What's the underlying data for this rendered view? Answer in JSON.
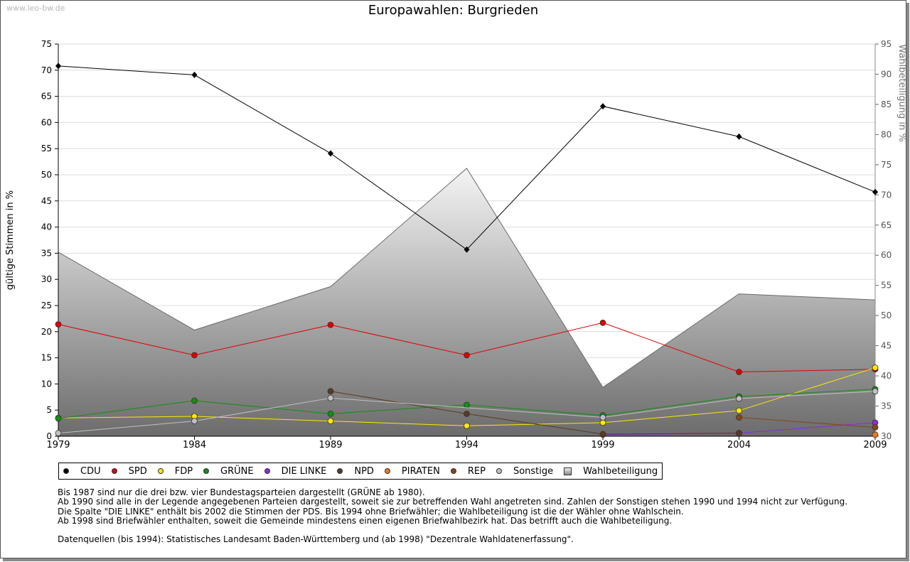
{
  "watermark": "www.leo-bw.de",
  "chart_data": {
    "type": "line",
    "title": "Europawahlen: Burgrieden",
    "ylabel": "gültige Stimmen in %",
    "y2label": "Wahlbeteiligung in %",
    "x": [
      1979,
      1984,
      1989,
      1994,
      1999,
      2004,
      2009
    ],
    "ylim": [
      0,
      75
    ],
    "y_ticks": [
      0,
      5,
      10,
      15,
      20,
      25,
      30,
      35,
      40,
      45,
      50,
      55,
      60,
      65,
      70,
      75
    ],
    "y2lim": [
      30,
      95
    ],
    "y2_ticks": [
      30,
      35,
      40,
      45,
      50,
      55,
      60,
      65,
      70,
      75,
      80,
      85,
      90,
      95
    ],
    "grid": true,
    "legend_position": "bottom",
    "series": [
      {
        "name": "CDU",
        "color": "#000000",
        "x": [
          1979,
          1984,
          1989,
          1994,
          1999,
          2004,
          2009
        ],
        "values": [
          70.8,
          69.1,
          54.1,
          35.7,
          63.1,
          57.3,
          46.7
        ]
      },
      {
        "name": "SPD",
        "color": "#e00000",
        "x": [
          1979,
          1984,
          1989,
          1994,
          1999,
          2004,
          2009
        ],
        "values": [
          21.4,
          15.5,
          21.3,
          15.5,
          21.7,
          12.3,
          12.8
        ]
      },
      {
        "name": "FDP",
        "color": "#ffe800",
        "x": [
          1979,
          1984,
          1989,
          1994,
          1999,
          2004,
          2009
        ],
        "values": [
          3.5,
          3.8,
          2.9,
          2.0,
          2.6,
          4.9,
          13.1
        ]
      },
      {
        "name": "GRÜNE",
        "color": "#109010",
        "x": [
          1979,
          1984,
          1989,
          1994,
          1999,
          2004,
          2009
        ],
        "values": [
          3.4,
          6.8,
          4.3,
          6.0,
          4.0,
          7.6,
          9.0
        ]
      },
      {
        "name": "DIE LINKE",
        "color": "#8a2be2",
        "x": [
          1999,
          2004,
          2009
        ],
        "values": [
          0.3,
          0.6,
          2.6
        ]
      },
      {
        "name": "NPD",
        "color": "#5a3a22",
        "x": [
          1989,
          1994,
          1999,
          2004
        ],
        "values": [
          8.6,
          4.3,
          0.4,
          0.6
        ]
      },
      {
        "name": "PIRATEN",
        "color": "#f07818",
        "x": [
          2009
        ],
        "values": [
          0.3
        ]
      },
      {
        "name": "REP",
        "color": "#8b4513",
        "x": [
          2004,
          2009
        ],
        "values": [
          3.6,
          1.7
        ]
      },
      {
        "name": "Sonstige",
        "color": "#c0c0c0",
        "x": [
          1979,
          1984,
          1989,
          1999,
          2004,
          2009
        ],
        "values": [
          0.6,
          2.9,
          7.3,
          3.6,
          7.2,
          8.6
        ]
      }
    ],
    "turnout": {
      "name": "Wahlbeteiligung",
      "axis": "right",
      "x": [
        1979,
        1984,
        1989,
        1994,
        1999,
        2004,
        2009
      ],
      "values": [
        60.5,
        47.6,
        54.8,
        74.4,
        38.1,
        53.6,
        52.6
      ]
    }
  },
  "notes": [
    "Bis 1987 sind nur die drei bzw. vier Bundestagsparteien dargestellt (GRÜNE ab 1980).",
    "Ab 1990 sind alle in der Legende angegebenen Parteien dargestellt, soweit sie zur betreffenden Wahl angetreten sind. Zahlen der Sonstigen stehen 1990 und 1994 nicht zur Verfügung.",
    "Die Spalte \"DIE LINKE\" enthält bis 2002 die Stimmen der PDS. Bis 1994 ohne Briefwähler; die Wahlbeteiligung ist die der Wähler ohne Wahlschein.",
    "Ab 1998 sind Briefwähler enthalten, soweit die Gemeinde mindestens einen eigenen Briefwahlbezirk hat. Das betrifft auch die Wahlbeteiligung.",
    "",
    "Datenquellen (bis 1994): Statistisches Landesamt Baden-Württemberg und (ab 1998) \"Dezentrale Wahldatenerfassung\"."
  ]
}
